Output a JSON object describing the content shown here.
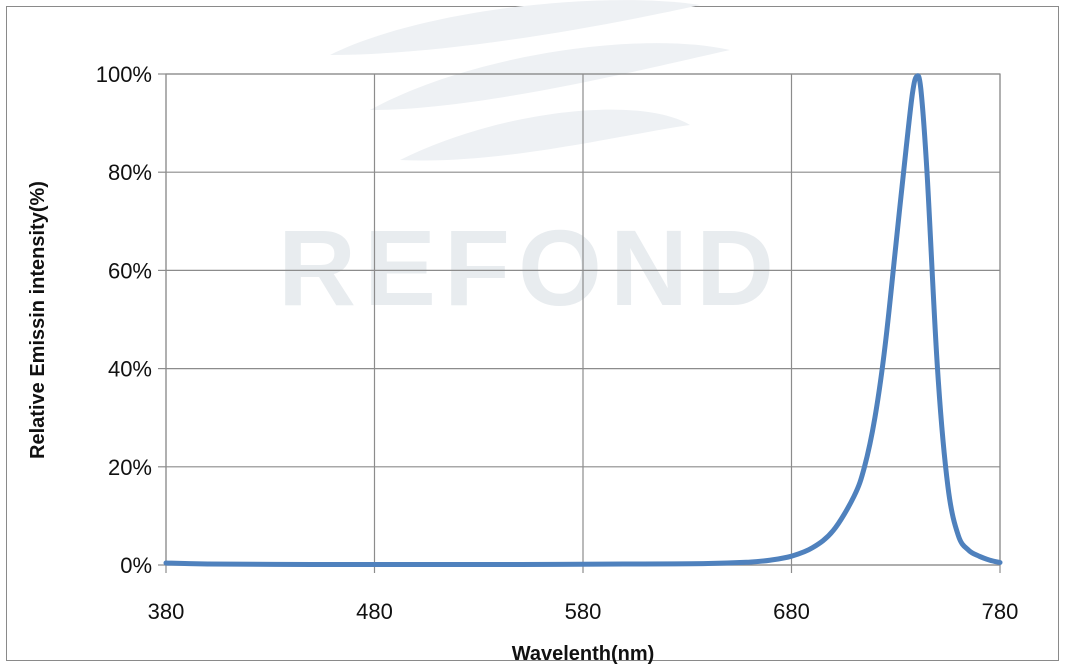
{
  "watermark": {
    "text": "REFOND"
  },
  "chart_data": {
    "type": "line",
    "title": "",
    "xlabel": "Wavelenth(nm)",
    "ylabel": "Relative Emissin intensity(%)",
    "xlim": [
      380,
      780
    ],
    "ylim": [
      0,
      100
    ],
    "x_ticks": [
      380,
      480,
      580,
      680,
      780
    ],
    "x_tick_labels": [
      "380",
      "480",
      "580",
      "680",
      "780"
    ],
    "y_ticks": [
      0,
      20,
      40,
      60,
      80,
      100
    ],
    "y_tick_labels": [
      "0%",
      "20%",
      "40%",
      "60%",
      "80%",
      "100%"
    ],
    "grid": true,
    "legend": "none",
    "line_color": "#4f81bd",
    "series": [
      {
        "x": [
          380,
          400,
          450,
          500,
          550,
          600,
          640,
          660,
          670,
          680,
          690,
          700,
          710,
          715,
          720,
          725,
          730,
          735,
          738,
          740,
          742,
          745,
          750,
          755,
          760,
          765,
          770,
          775,
          780
        ],
        "values": [
          0.4,
          0.2,
          0.1,
          0.1,
          0.1,
          0.2,
          0.3,
          0.6,
          1,
          1.8,
          3.5,
          7,
          14,
          20,
          30,
          45,
          65,
          85,
          96,
          99.5,
          97,
          80,
          40,
          16,
          6,
          3,
          1.8,
          1,
          0.5
        ]
      }
    ]
  }
}
